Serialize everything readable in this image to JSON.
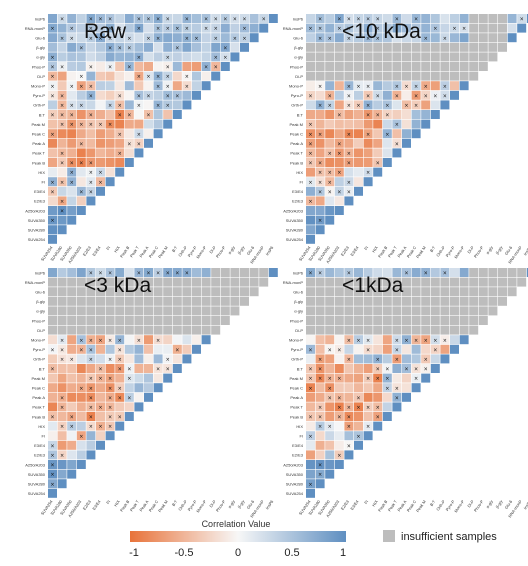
{
  "chart_data": {
    "type": "heatmap",
    "variables": [
      "SUVA254",
      "SUVA280",
      "SUVA350",
      "A250/A203",
      "E2/E3",
      "E3/E4",
      "FI",
      "HIX",
      "Peak B",
      "Peak T",
      "Peak A",
      "Peak C",
      "Peak M",
      "B:T",
      "Orth-P",
      "Pyro-P",
      "Mono-P",
      "Di-P",
      "Phos-P",
      "α-gly",
      "β-gly",
      "Glu-6",
      "RNA-monP",
      "InsP6"
    ],
    "panels": [
      {
        "title": "Raw",
        "insufficient": []
      },
      {
        "title": "<10 kDa",
        "insufficient": [
          "Di-P",
          "Phos-P",
          "α-gly",
          "β-gly"
        ]
      },
      {
        "title": "<3 kDa",
        "insufficient": [
          "Di-P",
          "Phos-P",
          "α-gly",
          "β-gly",
          "Glu-6",
          "RNA-monP"
        ]
      },
      {
        "title": "<1kDa",
        "insufficient": [
          "Di-P",
          "Phos-P",
          "α-gly",
          "β-gly",
          "Glu-6",
          "RNA-monP"
        ]
      }
    ],
    "legend": {
      "title": "Correlation Value",
      "ticks": [
        "-1",
        "-0.5",
        "0",
        "0.5",
        "1"
      ],
      "range": [
        -1,
        1
      ],
      "neg_color": "#e8733a",
      "mid_color": "#f7f7f7",
      "pos_color": "#5f8fc1",
      "insufficient_label": "insufficient samples",
      "insufficient_color": "#bdbdbd"
    },
    "cell_mark": "×",
    "grid_color": "#ececec"
  }
}
